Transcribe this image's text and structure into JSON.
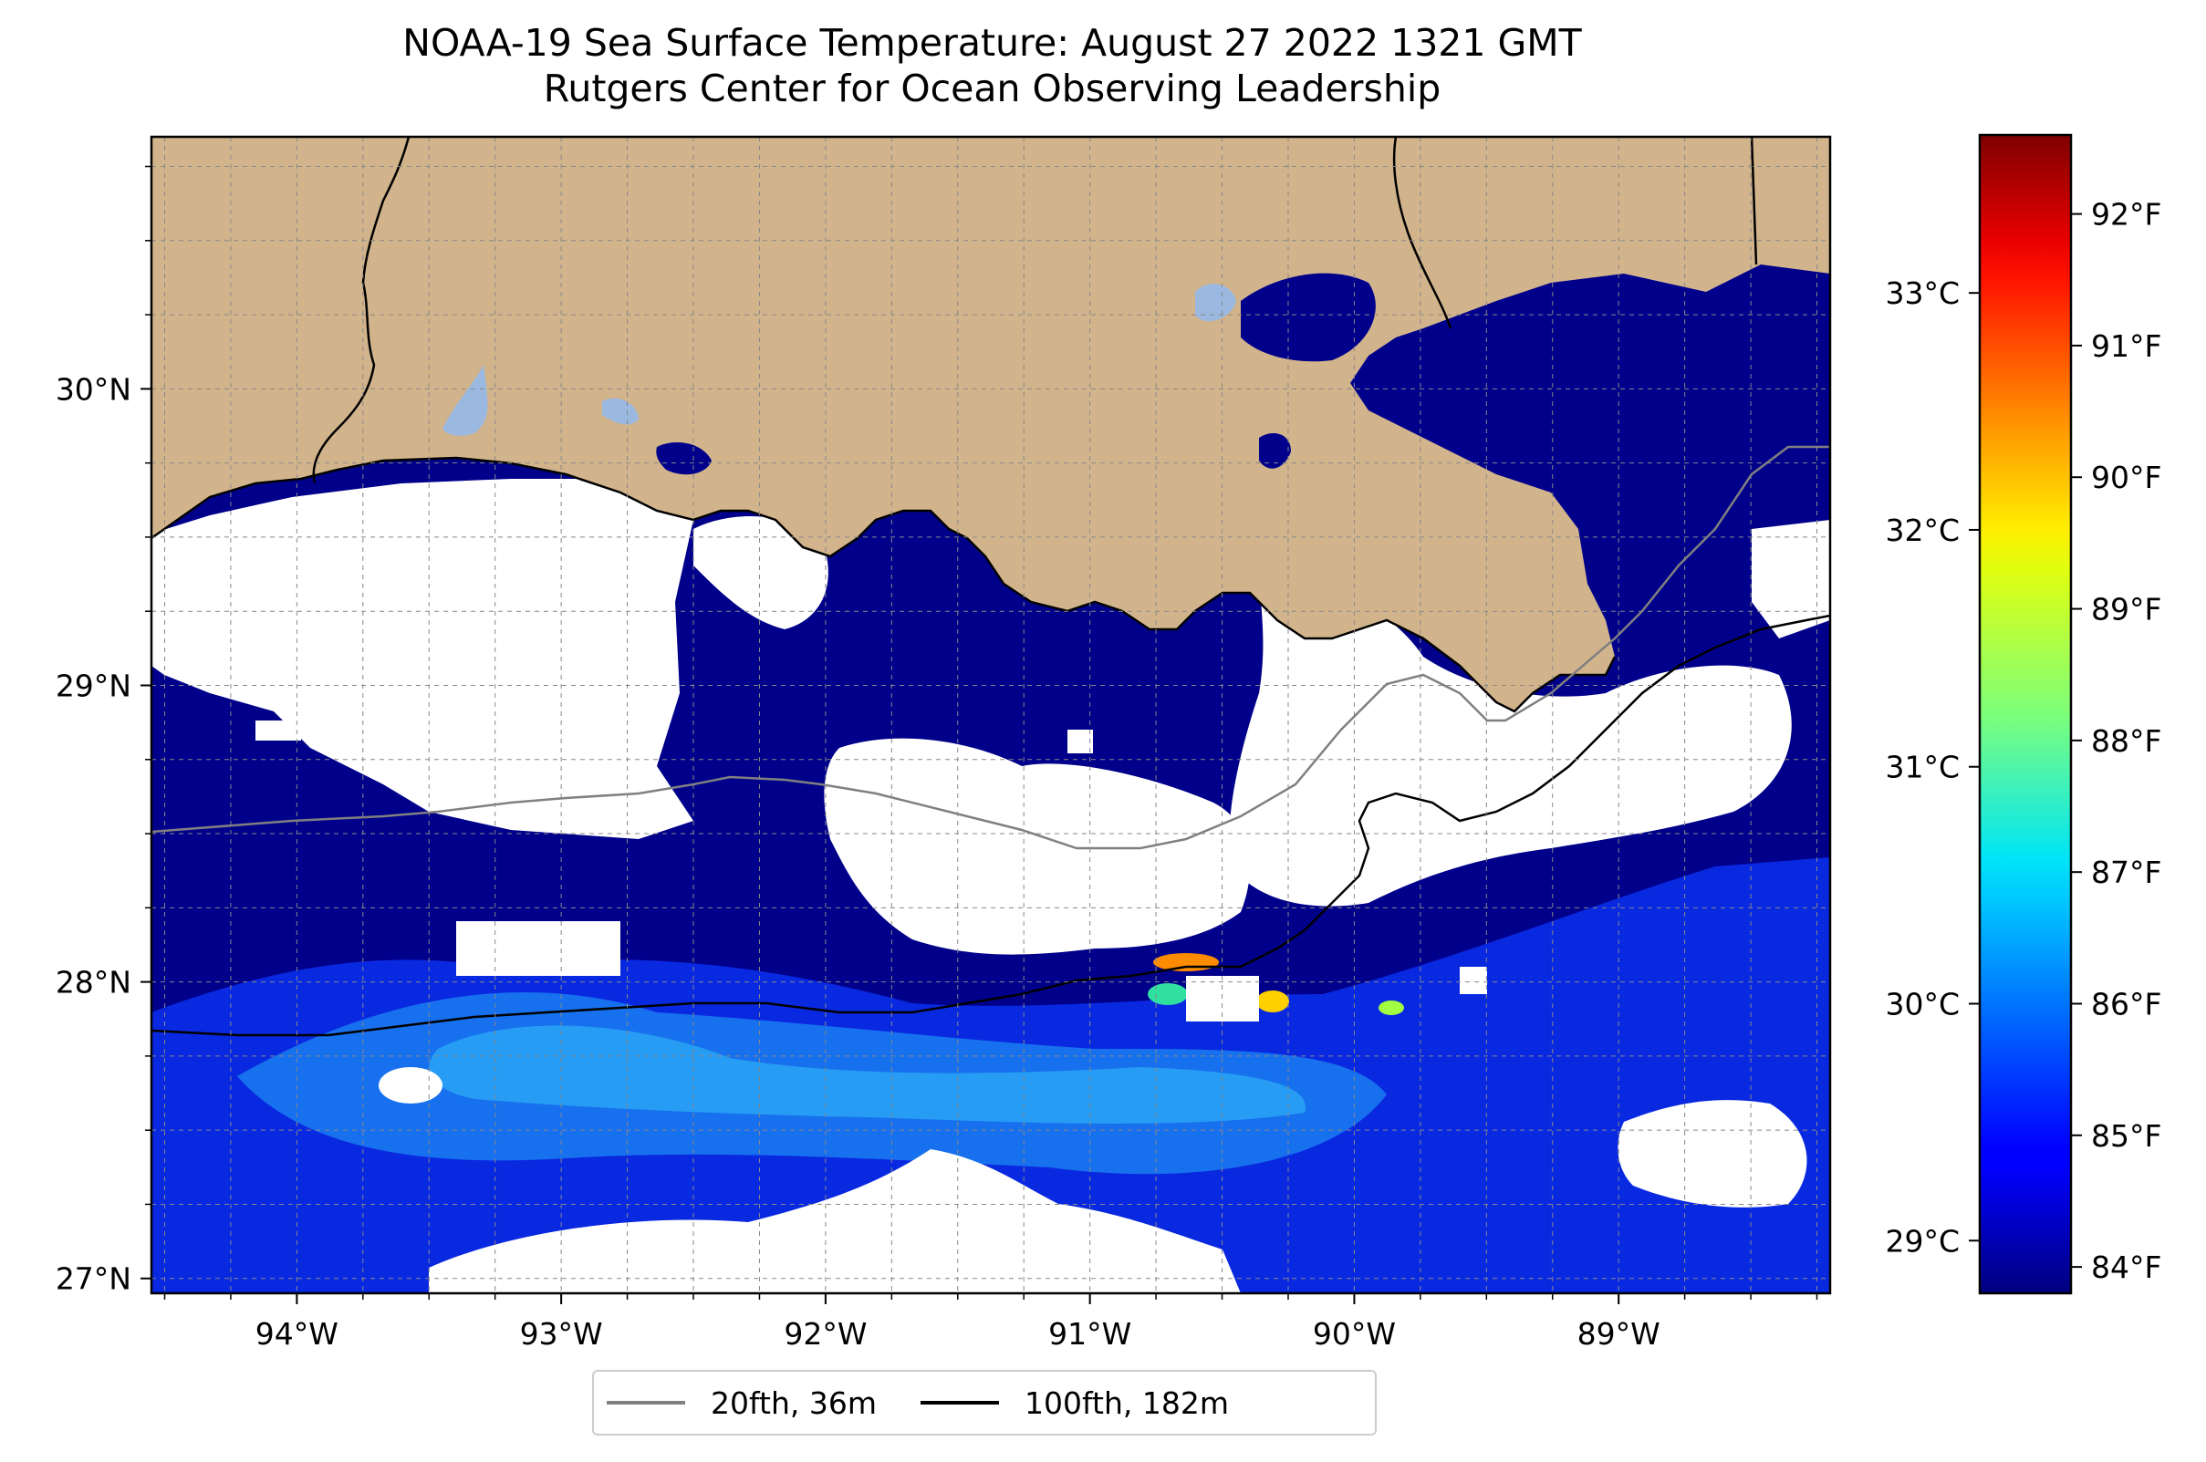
{
  "title": {
    "line1": "NOAA-19 Sea Surface Temperature: August 27 2022 1321 GMT",
    "line2": "Rutgers Center for Ocean Observing Leadership"
  },
  "map": {
    "lon_range": [
      -94.55,
      -88.2
    ],
    "lat_range": [
      26.95,
      30.85
    ],
    "lon_ticks": [
      {
        "value": -94,
        "label": "94°W"
      },
      {
        "value": -93,
        "label": "93°W"
      },
      {
        "value": -92,
        "label": "92°W"
      },
      {
        "value": -91,
        "label": "91°W"
      },
      {
        "value": -90,
        "label": "90°W"
      },
      {
        "value": -89,
        "label": "89°W"
      }
    ],
    "lat_ticks": [
      {
        "value": 27,
        "label": "27°N"
      },
      {
        "value": 28,
        "label": "28°N"
      },
      {
        "value": 29,
        "label": "29°N"
      },
      {
        "value": 30,
        "label": "30°N"
      }
    ],
    "gridlines": "dashed",
    "colors": {
      "land": "#d2b48c",
      "water_cold": "#00008b",
      "cloud": "#ffffff",
      "inland_lake": "#9ab8e0"
    }
  },
  "colorbar": {
    "colormap": "jet",
    "f_range": [
      83.8,
      92.6
    ],
    "fahrenheit_ticks": [
      {
        "value": 84,
        "label": "84°F"
      },
      {
        "value": 85,
        "label": "85°F"
      },
      {
        "value": 86,
        "label": "86°F"
      },
      {
        "value": 87,
        "label": "87°F"
      },
      {
        "value": 88,
        "label": "88°F"
      },
      {
        "value": 89,
        "label": "89°F"
      },
      {
        "value": 90,
        "label": "90°F"
      },
      {
        "value": 91,
        "label": "91°F"
      },
      {
        "value": 92,
        "label": "92°F"
      }
    ],
    "celsius_ticks": [
      {
        "value": 29,
        "label": "29°C"
      },
      {
        "value": 30,
        "label": "30°C"
      },
      {
        "value": 31,
        "label": "31°C"
      },
      {
        "value": 32,
        "label": "32°C"
      },
      {
        "value": 33,
        "label": "33°C"
      }
    ]
  },
  "legend": {
    "placement": "below-center",
    "items": [
      {
        "label": "20fth, 36m",
        "color": "#808080"
      },
      {
        "label": "100fth, 182m",
        "color": "#000000"
      }
    ]
  }
}
